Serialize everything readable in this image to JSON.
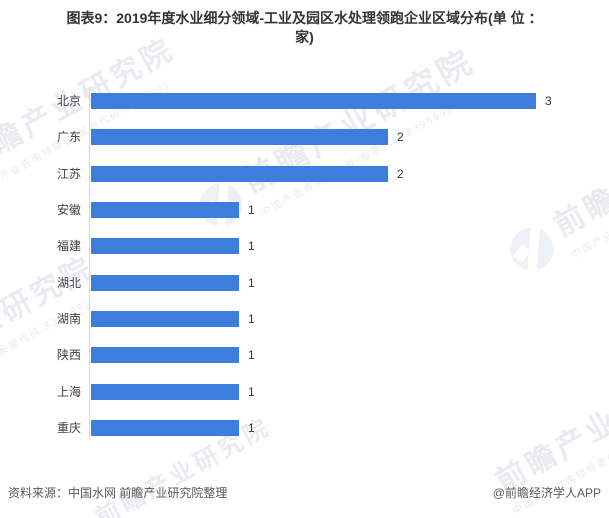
{
  "title": {
    "line1": "图表9：2019年度水业细分领域-工业及园区水处理领跑企业区域分布(单 位 ：",
    "line2": "家)"
  },
  "chart_data": {
    "type": "bar",
    "orientation": "horizontal",
    "title": "2019年度水业细分领域-工业及园区水处理领跑企业区域分布",
    "unit": "家",
    "categories": [
      "北京",
      "广东",
      "江苏",
      "安徽",
      "福建",
      "湖北",
      "湖南",
      "陕西",
      "上海",
      "重庆"
    ],
    "values": [
      3,
      2,
      2,
      1,
      1,
      1,
      1,
      1,
      1,
      1
    ],
    "xlim": [
      0,
      3.6
    ],
    "grid": false,
    "legend": "none",
    "value_labels_shown": true,
    "bar_color": "#3D7EDC"
  },
  "footer": {
    "source": "资料来源：中国水网 前瞻产业研究院整理",
    "credit": "@前瞻经济学人APP"
  },
  "watermark": {
    "brand": "前瞻产业研究院",
    "tagline": "中国产业咨询领导者(股票代码:839599)"
  },
  "colors": {
    "bar": "#3D7EDC",
    "axis_line": "#D9D9D9",
    "title_text": "#333333",
    "label_text": "#404040",
    "footer_text": "#595959",
    "watermark_text": "#E9EBF0"
  }
}
